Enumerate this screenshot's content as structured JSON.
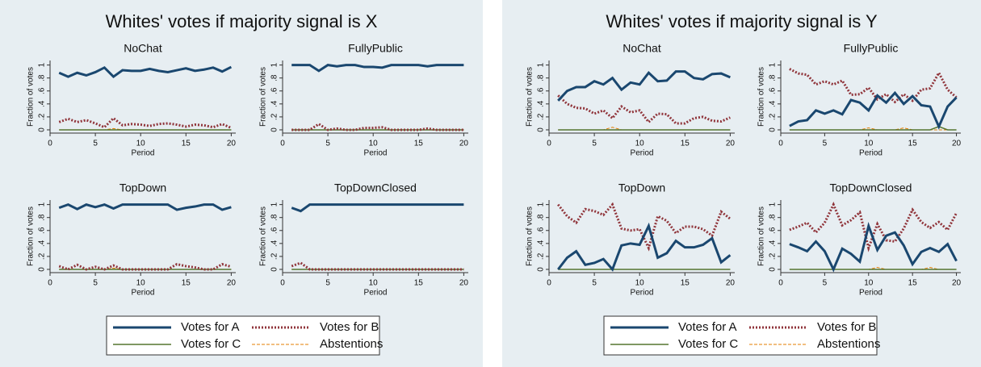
{
  "chart_data": [
    {
      "type": "line",
      "title": "Whites' votes if majority signal is X",
      "xlabel": "Period",
      "ylabel": "Fraction of votes",
      "x": [
        1,
        2,
        3,
        4,
        5,
        6,
        7,
        8,
        9,
        10,
        11,
        12,
        13,
        14,
        15,
        16,
        17,
        18,
        19,
        20
      ],
      "xlim": [
        0,
        20.5
      ],
      "xticks": [
        0,
        5,
        10,
        15,
        20
      ],
      "ylim": [
        -0.05,
        1.07
      ],
      "yticks": [
        0,
        {
          "value": 0.2,
          "label": ".2"
        },
        {
          "value": 0.4,
          "label": ".4"
        },
        {
          "value": 0.6,
          "label": ".6"
        },
        {
          "value": 0.8,
          "label": ".8"
        },
        1
      ],
      "series": [
        {
          "name": "Votes for A",
          "color": "#1a476f"
        },
        {
          "name": "Votes for B",
          "color": "#90353b"
        },
        {
          "name": "Votes for C",
          "color": "#55752f"
        },
        {
          "name": "Abstentions",
          "color": "#e37e00"
        }
      ],
      "panels": [
        {
          "title": "NoChat",
          "values": [
            [
              0.88,
              0.82,
              0.88,
              0.84,
              0.89,
              0.96,
              0.82,
              0.92,
              0.91,
              0.91,
              0.94,
              0.91,
              0.89,
              0.92,
              0.95,
              0.91,
              0.93,
              0.96,
              0.9,
              0.97
            ],
            [
              0.12,
              0.17,
              0.12,
              0.15,
              0.1,
              0.04,
              0.18,
              0.07,
              0.09,
              0.08,
              0.06,
              0.09,
              0.1,
              0.08,
              0.05,
              0.08,
              0.07,
              0.04,
              0.09,
              0.03
            ],
            [
              0,
              0,
              0,
              0,
              0,
              0,
              0,
              0,
              0,
              0,
              0,
              0,
              0,
              0,
              0,
              0,
              0,
              0,
              0,
              0
            ],
            [
              0,
              0,
              0,
              0,
              0,
              0,
              0.02,
              0,
              0,
              0,
              0,
              0,
              0,
              0,
              0,
              0,
              0,
              0,
              0,
              0
            ]
          ]
        },
        {
          "title": "FullyPublic",
          "values": [
            [
              1,
              1,
              1,
              0.91,
              1,
              0.98,
              1,
              1,
              0.97,
              0.97,
              0.96,
              1,
              1,
              1,
              1,
              0.98,
              1,
              1,
              1,
              1
            ],
            [
              0,
              0,
              0,
              0.09,
              0,
              0.02,
              0,
              0,
              0.03,
              0.03,
              0.04,
              0,
              0,
              0,
              0,
              0.02,
              0,
              0,
              0,
              0
            ],
            [
              0,
              0,
              0,
              0,
              0,
              0,
              0,
              0,
              0,
              0,
              0,
              0,
              0,
              0,
              0,
              0,
              0,
              0,
              0,
              0
            ],
            [
              0,
              0,
              0,
              0,
              0,
              0,
              0,
              0,
              0,
              0,
              0,
              0,
              0,
              0,
              0,
              0,
              0,
              0,
              0,
              0
            ]
          ]
        },
        {
          "title": "TopDown",
          "values": [
            [
              0.95,
              1,
              0.93,
              1,
              0.96,
              1,
              0.94,
              1,
              1,
              1,
              1,
              1,
              1,
              0.92,
              0.95,
              0.97,
              1,
              1,
              0.92,
              0.96
            ],
            [
              0.05,
              0,
              0.07,
              0,
              0.04,
              0,
              0.06,
              0,
              0,
              0,
              0,
              0,
              0,
              0.08,
              0.05,
              0.03,
              0,
              0,
              0.08,
              0.04
            ],
            [
              0,
              0,
              0,
              0,
              0,
              0,
              0,
              0,
              0,
              0,
              0,
              0,
              0,
              0,
              0,
              0,
              0,
              0,
              0,
              0
            ],
            [
              0,
              0,
              0,
              0,
              0,
              0,
              0.02,
              0,
              0,
              0,
              0,
              0,
              0,
              0,
              0,
              0,
              0,
              0,
              0,
              0
            ]
          ]
        },
        {
          "title": "TopDownClosed",
          "values": [
            [
              0.95,
              0.9,
              1,
              1,
              1,
              1,
              1,
              1,
              1,
              1,
              1,
              1,
              1,
              1,
              1,
              1,
              1,
              1,
              1,
              1
            ],
            [
              0.05,
              0.1,
              0,
              0,
              0,
              0,
              0,
              0,
              0,
              0,
              0,
              0,
              0,
              0,
              0,
              0,
              0,
              0,
              0,
              0
            ],
            [
              0,
              0,
              0,
              0,
              0,
              0,
              0,
              0,
              0,
              0,
              0,
              0,
              0,
              0,
              0,
              0,
              0,
              0,
              0,
              0
            ],
            [
              0,
              0,
              0,
              0,
              0,
              0,
              0,
              0,
              0,
              0,
              0,
              0,
              0,
              0,
              0,
              0,
              0,
              0,
              0,
              0
            ]
          ]
        }
      ]
    },
    {
      "type": "line",
      "title": "Whites' votes if majority signal is Y",
      "xlabel": "Period",
      "ylabel": "Fraction of votes",
      "x": [
        1,
        2,
        3,
        4,
        5,
        6,
        7,
        8,
        9,
        10,
        11,
        12,
        13,
        14,
        15,
        16,
        17,
        18,
        19,
        20
      ],
      "xlim": [
        0,
        20.5
      ],
      "xticks": [
        0,
        5,
        10,
        15,
        20
      ],
      "ylim": [
        -0.05,
        1.07
      ],
      "yticks": [
        0,
        {
          "value": 0.2,
          "label": ".2"
        },
        {
          "value": 0.4,
          "label": ".4"
        },
        {
          "value": 0.6,
          "label": ".6"
        },
        {
          "value": 0.8,
          "label": ".8"
        },
        1
      ],
      "series": [
        {
          "name": "Votes for A",
          "color": "#1a476f"
        },
        {
          "name": "Votes for B",
          "color": "#90353b"
        },
        {
          "name": "Votes for C",
          "color": "#55752f"
        },
        {
          "name": "Abstentions",
          "color": "#e37e00"
        }
      ],
      "panels": [
        {
          "title": "NoChat",
          "values": [
            [
              0.45,
              0.6,
              0.66,
              0.66,
              0.75,
              0.7,
              0.8,
              0.62,
              0.73,
              0.7,
              0.88,
              0.75,
              0.76,
              0.9,
              0.9,
              0.8,
              0.78,
              0.86,
              0.87,
              0.81
            ],
            [
              0.53,
              0.4,
              0.34,
              0.33,
              0.25,
              0.3,
              0.18,
              0.36,
              0.27,
              0.3,
              0.12,
              0.25,
              0.24,
              0.1,
              0.1,
              0.18,
              0.2,
              0.14,
              0.13,
              0.19
            ],
            [
              0,
              0,
              0,
              0,
              0,
              0,
              0,
              0,
              0,
              0,
              0,
              0,
              0,
              0,
              0,
              0,
              0,
              0,
              0,
              0
            ],
            [
              0,
              0,
              0,
              0,
              0,
              0,
              0.04,
              0,
              0,
              0,
              0,
              0,
              0,
              0,
              0,
              0,
              0,
              0,
              0,
              0
            ]
          ]
        },
        {
          "title": "FullyPublic",
          "values": [
            [
              0.06,
              0.13,
              0.15,
              0.3,
              0.25,
              0.3,
              0.24,
              0.46,
              0.42,
              0.3,
              0.53,
              0.42,
              0.57,
              0.4,
              0.52,
              0.38,
              0.36,
              0.05,
              0.36,
              0.5
            ],
            [
              0.94,
              0.87,
              0.85,
              0.7,
              0.75,
              0.7,
              0.76,
              0.54,
              0.55,
              0.65,
              0.47,
              0.55,
              0.43,
              0.55,
              0.45,
              0.62,
              0.64,
              0.88,
              0.62,
              0.5
            ],
            [
              0,
              0,
              0,
              0,
              0,
              0,
              0,
              0,
              0,
              0,
              0,
              0,
              0,
              0,
              0,
              0,
              0,
              0.05,
              0,
              0
            ],
            [
              0,
              0,
              0,
              0,
              0,
              0,
              0,
              0,
              0,
              0.03,
              0,
              0,
              0,
              0.03,
              0,
              0,
              0,
              0,
              0,
              0
            ]
          ]
        },
        {
          "title": "TopDown",
          "values": [
            [
              0,
              0.18,
              0.28,
              0.07,
              0.1,
              0.16,
              0,
              0.37,
              0.4,
              0.38,
              0.67,
              0.18,
              0.25,
              0.44,
              0.34,
              0.34,
              0.38,
              0.48,
              0.11,
              0.22
            ],
            [
              1,
              0.82,
              0.72,
              0.93,
              0.9,
              0.84,
              1,
              0.63,
              0.6,
              0.62,
              0.33,
              0.82,
              0.75,
              0.56,
              0.66,
              0.66,
              0.62,
              0.52,
              0.89,
              0.78
            ],
            [
              0,
              0,
              0,
              0,
              0,
              0,
              0,
              0,
              0,
              0,
              0,
              0,
              0,
              0,
              0,
              0,
              0,
              0,
              0,
              0
            ],
            [
              0,
              0,
              0,
              0,
              0,
              0,
              0,
              0,
              0,
              0,
              0,
              0,
              0,
              0,
              0,
              0,
              0,
              0,
              0,
              0
            ]
          ]
        },
        {
          "title": "TopDownClosed",
          "values": [
            [
              0.39,
              0.34,
              0.28,
              0.43,
              0.28,
              0,
              0.32,
              0.24,
              0.12,
              0.67,
              0.3,
              0.52,
              0.57,
              0.37,
              0.08,
              0.27,
              0.33,
              0.27,
              0.39,
              0.13
            ],
            [
              0.61,
              0.66,
              0.72,
              0.57,
              0.72,
              1,
              0.68,
              0.76,
              0.88,
              0.33,
              0.7,
              0.45,
              0.43,
              0.63,
              0.92,
              0.73,
              0.64,
              0.73,
              0.61,
              0.87
            ],
            [
              0,
              0,
              0,
              0,
              0,
              0,
              0,
              0,
              0,
              0,
              0,
              0,
              0,
              0,
              0,
              0,
              0,
              0,
              0,
              0
            ],
            [
              0,
              0,
              0,
              0,
              0,
              0,
              0,
              0,
              0,
              0,
              0.03,
              0,
              0,
              0,
              0,
              0,
              0.03,
              0,
              0,
              0
            ]
          ]
        }
      ]
    }
  ]
}
